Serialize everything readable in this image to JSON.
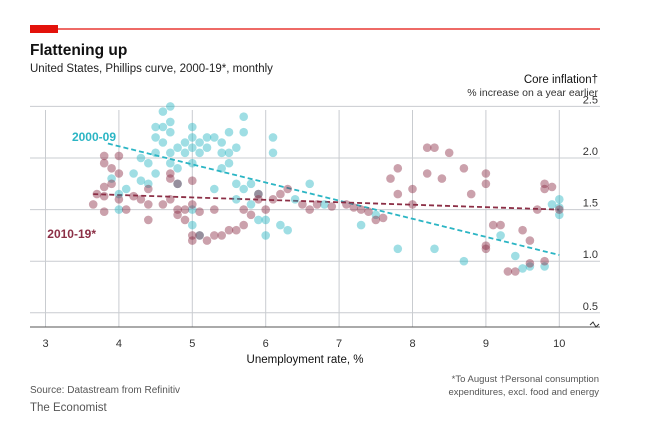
{
  "title": "Flattening up",
  "subtitle": "United States, Phillips curve, 2000-19*, monthly",
  "ylabel": "Core inflation†",
  "ylabel_sub": "% increase on a year earlier",
  "xlabel": "Unemployment rate, %",
  "source": "Source: Datastream from Refinitiv",
  "publisher": "The Economist",
  "footnote_1": "*To August   †Personal consumption",
  "footnote_2": "expenditures, excl. food and energy",
  "colors": {
    "accent": "#e3120b",
    "series_2000_09": "#2bb5c4",
    "series_2010_19": "#8c2f46",
    "grid": "#bfc3c7"
  },
  "chart_data": {
    "type": "scatter",
    "x_ticks": [
      3,
      4,
      5,
      6,
      7,
      8,
      9,
      10
    ],
    "y_ticks": [
      0.5,
      1.0,
      1.5,
      2.0,
      2.5
    ],
    "y_tick_labels": [
      "0.5",
      "1.0",
      "1.5",
      "2.0",
      "2.5"
    ],
    "xlim": [
      3,
      10.4
    ],
    "ylim": [
      0.3,
      2.6
    ],
    "y_axis_break": true,
    "grid": true,
    "series": [
      {
        "name": "2000-09",
        "label": "2000-09",
        "color": "#2bb5c4",
        "trend": [
          [
            3.85,
            2.14
          ],
          [
            10.0,
            1.06
          ]
        ],
        "points": [
          [
            3.9,
            1.8
          ],
          [
            4.0,
            1.65
          ],
          [
            4.0,
            1.5
          ],
          [
            4.1,
            1.7
          ],
          [
            4.2,
            1.85
          ],
          [
            4.3,
            1.78
          ],
          [
            4.3,
            2.0
          ],
          [
            4.4,
            1.95
          ],
          [
            4.4,
            1.75
          ],
          [
            4.5,
            2.3
          ],
          [
            4.5,
            2.2
          ],
          [
            4.5,
            2.05
          ],
          [
            4.5,
            1.85
          ],
          [
            4.6,
            2.45
          ],
          [
            4.6,
            2.3
          ],
          [
            4.6,
            2.15
          ],
          [
            4.7,
            2.5
          ],
          [
            4.7,
            2.35
          ],
          [
            4.7,
            2.25
          ],
          [
            4.7,
            2.05
          ],
          [
            4.7,
            1.95
          ],
          [
            4.8,
            2.1
          ],
          [
            4.8,
            1.9
          ],
          [
            4.8,
            1.75
          ],
          [
            4.9,
            2.15
          ],
          [
            4.9,
            2.05
          ],
          [
            5.0,
            2.3
          ],
          [
            5.0,
            2.2
          ],
          [
            5.0,
            2.1
          ],
          [
            5.0,
            1.95
          ],
          [
            5.0,
            1.5
          ],
          [
            5.0,
            1.35
          ],
          [
            5.1,
            2.15
          ],
          [
            5.1,
            2.05
          ],
          [
            5.1,
            1.25
          ],
          [
            5.2,
            2.2
          ],
          [
            5.2,
            2.1
          ],
          [
            5.3,
            2.2
          ],
          [
            5.3,
            1.7
          ],
          [
            5.4,
            2.15
          ],
          [
            5.4,
            2.05
          ],
          [
            5.4,
            1.9
          ],
          [
            5.5,
            2.25
          ],
          [
            5.5,
            2.05
          ],
          [
            5.5,
            1.95
          ],
          [
            5.6,
            2.1
          ],
          [
            5.6,
            1.75
          ],
          [
            5.6,
            1.6
          ],
          [
            5.7,
            2.4
          ],
          [
            5.7,
            2.25
          ],
          [
            5.7,
            1.7
          ],
          [
            5.8,
            1.75
          ],
          [
            5.8,
            1.55
          ],
          [
            5.9,
            1.65
          ],
          [
            5.9,
            1.4
          ],
          [
            6.0,
            1.4
          ],
          [
            6.0,
            1.25
          ],
          [
            6.1,
            2.2
          ],
          [
            6.1,
            2.05
          ],
          [
            6.2,
            1.35
          ],
          [
            6.3,
            1.3
          ],
          [
            6.4,
            1.6
          ],
          [
            6.6,
            1.75
          ],
          [
            6.8,
            1.55
          ],
          [
            7.3,
            1.35
          ],
          [
            7.5,
            1.45
          ],
          [
            7.8,
            1.12
          ],
          [
            8.3,
            1.12
          ],
          [
            8.7,
            1.0
          ],
          [
            9.2,
            1.25
          ],
          [
            9.4,
            1.05
          ],
          [
            9.5,
            0.93
          ],
          [
            9.6,
            0.95
          ],
          [
            9.8,
            0.95
          ],
          [
            9.9,
            1.55
          ],
          [
            10.0,
            1.6
          ],
          [
            10.0,
            1.52
          ],
          [
            10.0,
            1.45
          ]
        ]
      },
      {
        "name": "2010-19*",
        "label": "2010-19*",
        "color": "#8c2f46",
        "trend": [
          [
            3.65,
            1.65
          ],
          [
            10.0,
            1.5
          ]
        ],
        "points": [
          [
            3.65,
            1.55
          ],
          [
            3.7,
            1.65
          ],
          [
            3.8,
            1.48
          ],
          [
            3.8,
            1.63
          ],
          [
            3.8,
            1.72
          ],
          [
            3.8,
            1.95
          ],
          [
            3.8,
            2.02
          ],
          [
            3.9,
            1.75
          ],
          [
            3.9,
            1.9
          ],
          [
            4.0,
            1.6
          ],
          [
            4.0,
            1.85
          ],
          [
            4.0,
            2.02
          ],
          [
            4.1,
            1.5
          ],
          [
            4.2,
            1.63
          ],
          [
            4.3,
            1.6
          ],
          [
            4.4,
            1.55
          ],
          [
            4.4,
            1.7
          ],
          [
            4.4,
            1.4
          ],
          [
            4.6,
            1.55
          ],
          [
            4.7,
            1.6
          ],
          [
            4.7,
            1.8
          ],
          [
            4.7,
            1.85
          ],
          [
            4.8,
            1.45
          ],
          [
            4.8,
            1.5
          ],
          [
            4.8,
            1.75
          ],
          [
            4.9,
            1.4
          ],
          [
            4.9,
            1.5
          ],
          [
            5.0,
            1.25
          ],
          [
            5.0,
            1.2
          ],
          [
            5.0,
            1.55
          ],
          [
            5.0,
            1.78
          ],
          [
            5.1,
            1.48
          ],
          [
            5.1,
            1.25
          ],
          [
            5.2,
            1.2
          ],
          [
            5.3,
            1.5
          ],
          [
            5.3,
            1.25
          ],
          [
            5.4,
            1.25
          ],
          [
            5.5,
            1.3
          ],
          [
            5.6,
            1.3
          ],
          [
            5.7,
            1.35
          ],
          [
            5.7,
            1.5
          ],
          [
            5.8,
            1.45
          ],
          [
            5.9,
            1.6
          ],
          [
            5.9,
            1.65
          ],
          [
            6.0,
            1.5
          ],
          [
            6.1,
            1.6
          ],
          [
            6.2,
            1.65
          ],
          [
            6.3,
            1.7
          ],
          [
            6.5,
            1.55
          ],
          [
            6.6,
            1.5
          ],
          [
            6.7,
            1.55
          ],
          [
            6.9,
            1.53
          ],
          [
            7.1,
            1.55
          ],
          [
            7.2,
            1.52
          ],
          [
            7.3,
            1.5
          ],
          [
            7.4,
            1.48
          ],
          [
            7.5,
            1.4
          ],
          [
            7.6,
            1.42
          ],
          [
            7.7,
            1.8
          ],
          [
            7.8,
            1.9
          ],
          [
            7.8,
            1.65
          ],
          [
            8.0,
            1.7
          ],
          [
            8.0,
            1.55
          ],
          [
            8.2,
            2.1
          ],
          [
            8.2,
            1.85
          ],
          [
            8.3,
            2.1
          ],
          [
            8.4,
            1.8
          ],
          [
            8.5,
            2.05
          ],
          [
            8.7,
            1.9
          ],
          [
            8.8,
            1.65
          ],
          [
            9.0,
            1.85
          ],
          [
            9.0,
            1.75
          ],
          [
            9.0,
            1.15
          ],
          [
            9.0,
            1.12
          ],
          [
            9.1,
            1.35
          ],
          [
            9.2,
            1.35
          ],
          [
            9.3,
            0.9
          ],
          [
            9.4,
            0.9
          ],
          [
            9.5,
            1.3
          ],
          [
            9.6,
            1.2
          ],
          [
            9.6,
            0.98
          ],
          [
            9.7,
            1.5
          ],
          [
            9.8,
            1.7
          ],
          [
            9.8,
            1.75
          ],
          [
            9.8,
            1.0
          ],
          [
            9.9,
            1.72
          ],
          [
            10.0,
            1.5
          ]
        ]
      }
    ]
  }
}
